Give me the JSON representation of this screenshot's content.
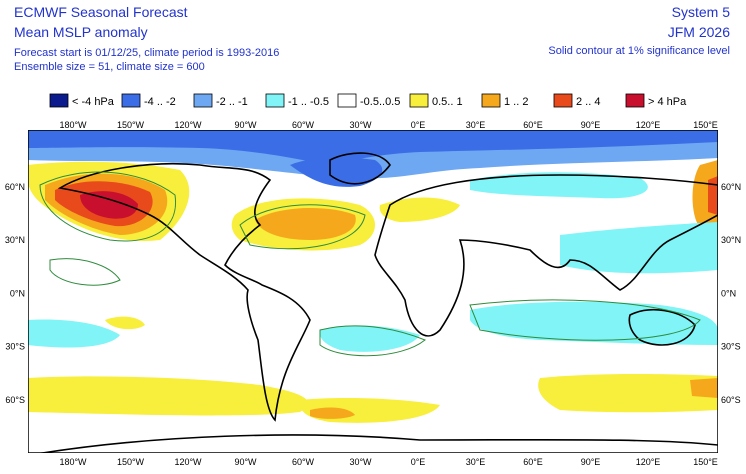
{
  "header": {
    "title": "ECMWF Seasonal Forecast",
    "subtitle": "Mean MSLP anomaly",
    "forecast_info": "Forecast start is 01/12/25, climate period is 1993-2016",
    "ensemble_info": "Ensemble size = 51, climate size = 600",
    "system": "System 5",
    "period": "JFM 2026",
    "significance_note": "Solid contour at 1% significance level"
  },
  "legend": {
    "items": [
      {
        "label": "< -4 hPa",
        "color": "#0b1a8c"
      },
      {
        "label": "-4 .. -2",
        "color": "#3b6ee6"
      },
      {
        "label": "-2 .. -1",
        "color": "#6ea8f2"
      },
      {
        "label": "-1 .. -0.5",
        "color": "#80f4f6"
      },
      {
        "label": "-0.5..0.5",
        "color": "#ffffff"
      },
      {
        "label": "0.5.. 1",
        "color": "#f8ee3c"
      },
      {
        "label": "1 .. 2",
        "color": "#f5a81c"
      },
      {
        "label": "2 .. 4",
        "color": "#e84a1c"
      },
      {
        "label": "> 4 hPa",
        "color": "#c8102e"
      }
    ]
  },
  "map": {
    "lon_labels": [
      "180°W",
      "150°W",
      "120°W",
      "90°W",
      "60°W",
      "30°W",
      "0°E",
      "30°E",
      "60°E",
      "90°E",
      "120°E",
      "150°E"
    ],
    "lat_labels": [
      "60°N",
      "30°N",
      "0°N",
      "30°S",
      "60°S"
    ]
  }
}
